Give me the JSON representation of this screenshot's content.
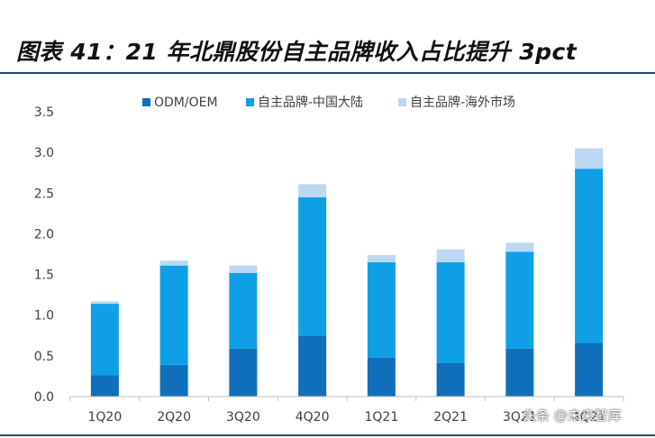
{
  "title": "图表 41：21 年北鼎股份自主品牌收入占比提升 3pct",
  "watermark": "头条 @未来智库",
  "chart_data": {
    "type": "bar",
    "stacked": true,
    "categories": [
      "1Q20",
      "2Q20",
      "3Q20",
      "4Q20",
      "1Q21",
      "2Q21",
      "3Q21",
      "4Q21"
    ],
    "series": [
      {
        "name": "ODM/OEM",
        "color": "#0f6fba",
        "values": [
          0.26,
          0.39,
          0.59,
          0.75,
          0.48,
          0.41,
          0.59,
          0.66
        ]
      },
      {
        "name": "自主品牌-中国大陆",
        "color": "#0f9fe6",
        "values": [
          0.88,
          1.22,
          0.93,
          1.7,
          1.17,
          1.24,
          1.19,
          2.14
        ]
      },
      {
        "name": "自主品牌-海外市场",
        "color": "#bcd8f2",
        "values": [
          0.03,
          0.06,
          0.09,
          0.16,
          0.09,
          0.16,
          0.11,
          0.25
        ]
      }
    ],
    "ylim": [
      0,
      3.5
    ],
    "yticks": [
      "0.0",
      "0.5",
      "1.0",
      "1.5",
      "2.0",
      "2.5",
      "3.0",
      "3.5"
    ],
    "legend_position": "top",
    "grid": false
  }
}
